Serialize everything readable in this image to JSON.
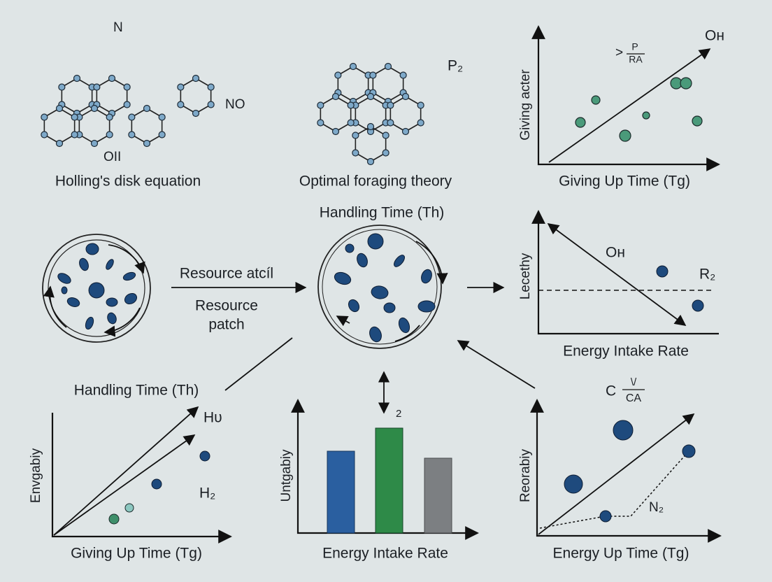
{
  "top_left": {
    "labels": [
      "N",
      "NO",
      "OΙΙ"
    ],
    "title": "Holling's disk equation"
  },
  "top_middle": {
    "labels": [
      "P₂"
    ],
    "title": "Optimal foraging theory"
  },
  "top_right": {
    "y_label": "Giving acter",
    "labels": [
      ">",
      "P",
      "RA",
      "Oн"
    ],
    "x_label": "Giving Up Time (Tg)"
  },
  "middle_left": {
    "arrow_label": "Resource atcíl",
    "patch_label": [
      "Resource",
      "patch"
    ]
  },
  "middle_center": {
    "title": "Handling Time (Th)"
  },
  "middle_right": {
    "y_label": "Lecethy",
    "labels": [
      "Oн",
      "R₂"
    ],
    "x_label": "Energy Intake Rate"
  },
  "bottom_left": {
    "title": "Handling Time (Th)",
    "y_label": "Envgabiy",
    "labels": [
      "Hᴜ",
      "H₂"
    ],
    "x_label": "Giving Up Time (Tg)"
  },
  "bottom_middle": {
    "labels": [
      "2"
    ],
    "y_label": "Untgabiy",
    "x_label": "Energy Intake Rate"
  },
  "bottom_right": {
    "labels": [
      "C",
      "\\/",
      "CA",
      "N₂"
    ],
    "y_label": "Reorabiy",
    "x_label": "Energy Up Time (Tg)"
  }
}
